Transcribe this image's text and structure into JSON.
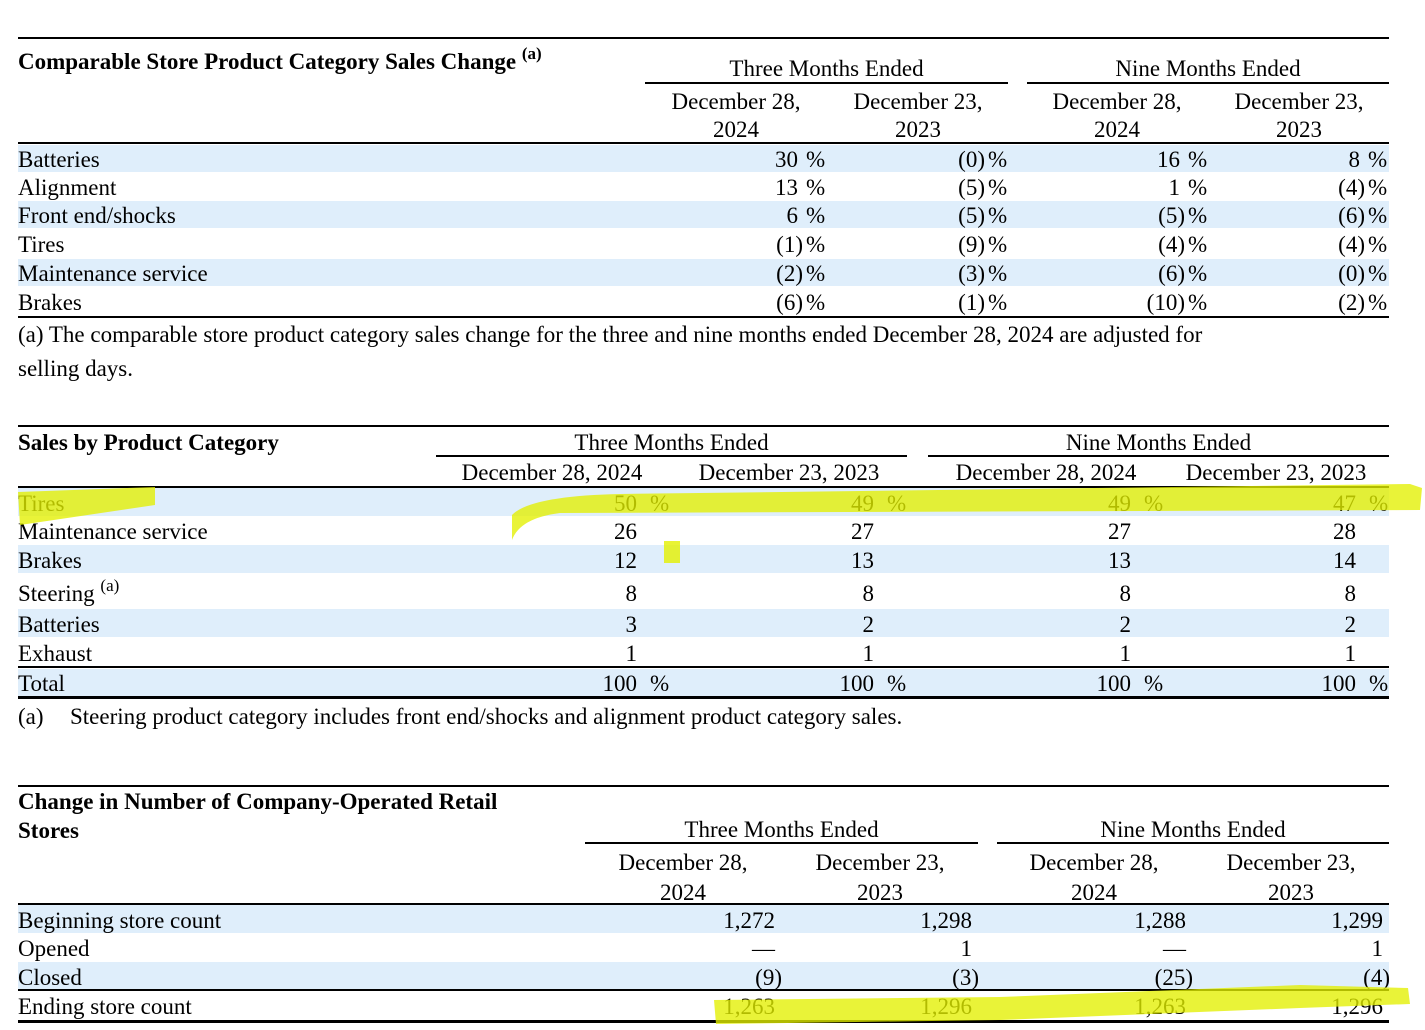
{
  "table1": {
    "title": "Comparable Store Product Category Sales Change",
    "title_note": "(a)",
    "group_three": "Three Months Ended",
    "group_nine": "Nine Months Ended",
    "columns": [
      {
        "line1": "December 28,",
        "line2": "2024"
      },
      {
        "line1": "December 23,",
        "line2": "2023"
      },
      {
        "line1": "December 28,",
        "line2": "2024"
      },
      {
        "line1": "December 23,",
        "line2": "2023"
      }
    ],
    "rows": [
      {
        "label": "Batteries",
        "values": [
          "30",
          "(0)",
          "16",
          "8"
        ]
      },
      {
        "label": "Alignment",
        "values": [
          "13",
          "(5)",
          "1",
          "(4)"
        ]
      },
      {
        "label": "Front end/shocks",
        "values": [
          "6",
          "(5)",
          "(5)",
          "(6)"
        ]
      },
      {
        "label": "Tires",
        "values": [
          "(1)",
          "(9)",
          "(4)",
          "(4)"
        ]
      },
      {
        "label": "Maintenance service",
        "values": [
          "(2)",
          "(3)",
          "(6)",
          "(0)"
        ]
      },
      {
        "label": "Brakes",
        "values": [
          "(6)",
          "(1)",
          "(10)",
          "(2)"
        ]
      }
    ],
    "pct": "%",
    "footnote_line1": "(a) The comparable store product category sales change for the three and nine months ended December 28, 2024 are adjusted for",
    "footnote_line2": "selling days."
  },
  "table2": {
    "title": "Sales by Product Category",
    "group_three": "Three Months Ended",
    "group_nine": "Nine Months Ended",
    "columns": [
      "December 28, 2024",
      "December 23, 2023",
      "December 28, 2024",
      "December 23, 2023"
    ],
    "rows": [
      {
        "label": "Tires",
        "values": [
          "50",
          "49",
          "49",
          "47"
        ],
        "pct": true
      },
      {
        "label": "Maintenance service",
        "values": [
          "26",
          "27",
          "27",
          "28"
        ]
      },
      {
        "label": "Brakes",
        "values": [
          "12",
          "13",
          "13",
          "14"
        ]
      },
      {
        "label": "Steering",
        "note": "(a)",
        "values": [
          "8",
          "8",
          "8",
          "8"
        ]
      },
      {
        "label": "Batteries",
        "values": [
          "3",
          "2",
          "2",
          "2"
        ]
      },
      {
        "label": "Exhaust",
        "values": [
          "1",
          "1",
          "1",
          "1"
        ]
      }
    ],
    "total": {
      "label": "Total",
      "values": [
        "100",
        "100",
        "100",
        "100"
      ]
    },
    "pct": "%",
    "footnote_marker": "(a)",
    "footnote_text": "Steering product category includes front end/shocks and alignment product category sales."
  },
  "table3": {
    "title_line1": "Change in Number of Company-Operated Retail",
    "title_line2": "Stores",
    "group_three": "Three Months Ended",
    "group_nine": "Nine Months Ended",
    "columns": [
      {
        "line1": "December 28,",
        "line2": "2024"
      },
      {
        "line1": "December 23,",
        "line2": "2023"
      },
      {
        "line1": "December 28,",
        "line2": "2024"
      },
      {
        "line1": "December 23,",
        "line2": "2023"
      }
    ],
    "rows": [
      {
        "label": "Beginning store count",
        "values": [
          "1,272",
          "1,298",
          "1,288",
          "1,299"
        ]
      },
      {
        "label": "Opened",
        "values": [
          "—",
          "1",
          "—",
          "1"
        ]
      },
      {
        "label": "Closed",
        "values": [
          "(9)",
          "(3)",
          "(25)",
          "(4)"
        ]
      },
      {
        "label": "Ending store count",
        "values": [
          "1,263",
          "1,296",
          "1,263",
          "1,296"
        ]
      }
    ]
  },
  "colors": {
    "band": "#dfeefb",
    "highlight": "#e3f000"
  }
}
